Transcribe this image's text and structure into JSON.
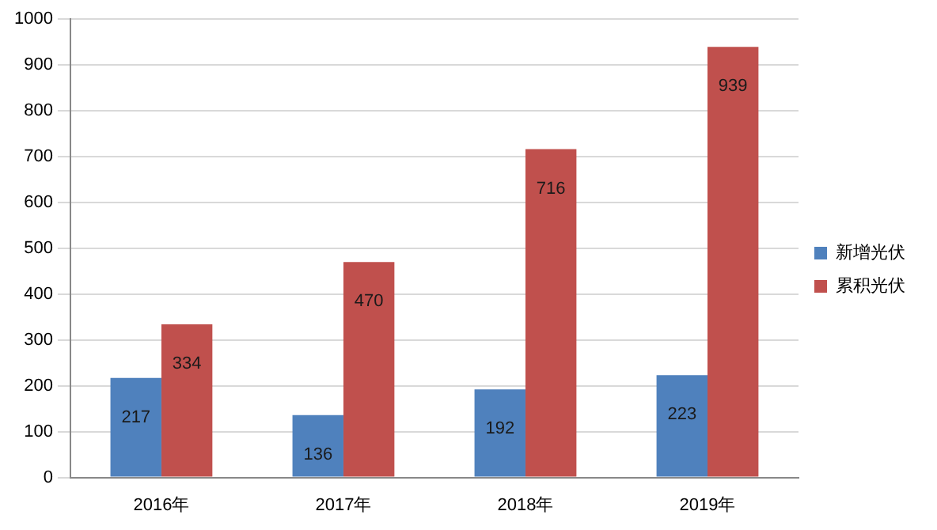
{
  "chart_data": {
    "type": "bar",
    "categories": [
      "2016年",
      "2017年",
      "2018年",
      "2019年"
    ],
    "series": [
      {
        "name": "新增光伏",
        "color": "#4f81bd",
        "values": [
          217,
          136,
          192,
          223
        ]
      },
      {
        "name": "累积光伏",
        "color": "#c0504d",
        "values": [
          334,
          470,
          716,
          939
        ]
      }
    ],
    "ylim": [
      0,
      1000
    ],
    "yticks": [
      0,
      100,
      200,
      300,
      400,
      500,
      600,
      700,
      800,
      900,
      1000
    ],
    "grid": "y",
    "legend": "right",
    "data_labels": true
  }
}
